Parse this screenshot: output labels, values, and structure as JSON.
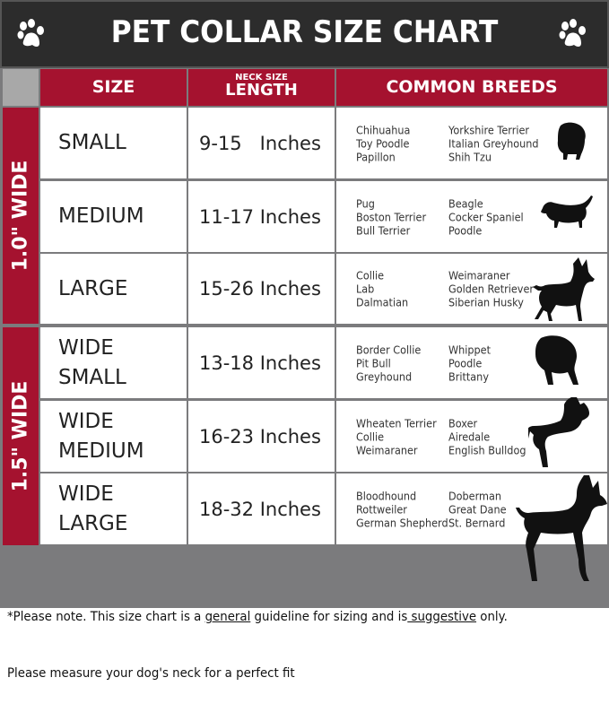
{
  "title": "PET COLLAR SIZE CHART",
  "header": {
    "size": "SIZE",
    "neck_small": "NECK SIZE",
    "length": "LENGTH",
    "breeds": "COMMON BREEDS"
  },
  "groups": [
    {
      "label": "1.0\" WIDE"
    },
    {
      "label": "1.5\" WIDE"
    }
  ],
  "rows": [
    {
      "size": [
        "SMALL"
      ],
      "length": "9-15   Inches",
      "breeds_a": [
        "Chihuahua",
        "Toy Poodle",
        "Papillon"
      ],
      "breeds_b": [
        "Yorkshire Terrier",
        "Italian Greyhound",
        "Shih Tzu"
      ],
      "icon": "small-dog-silhouette-icon"
    },
    {
      "size": [
        "MEDIUM"
      ],
      "length": "11-17 Inches",
      "breeds_a": [
        "Pug",
        "Boston Terrier",
        "Bull Terrier"
      ],
      "breeds_b": [
        "Beagle",
        "Cocker Spaniel",
        "Poodle"
      ],
      "icon": "dachshund-silhouette-icon"
    },
    {
      "size": [
        "LARGE"
      ],
      "length": "15-26 Inches",
      "breeds_a": [
        "Collie",
        "Lab",
        "Dalmatian"
      ],
      "breeds_b": [
        "Weimaraner",
        "Golden Retriever",
        "Siberian Husky"
      ],
      "icon": "shepherd-silhouette-icon"
    },
    {
      "size": [
        "WIDE",
        "SMALL"
      ],
      "length": "13-18 Inches",
      "breeds_a": [
        "Border Collie",
        "Pit Bull",
        "Greyhound"
      ],
      "breeds_b": [
        "Whippet",
        "Poodle",
        "Brittany"
      ],
      "icon": "bulldog-silhouette-icon"
    },
    {
      "size": [
        "WIDE",
        "MEDIUM"
      ],
      "length": "16-23 Inches",
      "breeds_a": [
        "Wheaten Terrier",
        "Collie",
        "Weimaraner"
      ],
      "breeds_b": [
        "Boxer",
        "Airedale",
        "English Bulldog"
      ],
      "icon": "pitbull-silhouette-icon"
    },
    {
      "size": [
        "WIDE",
        "LARGE"
      ],
      "length": "18-32 Inches",
      "breeds_a": [
        "Bloodhound",
        "Rottweiler",
        "German Shepherd"
      ],
      "breeds_b": [
        "Doberman",
        "Great Dane",
        "St. Bernard"
      ],
      "icon": "doberman-silhouette-icon"
    }
  ],
  "note": {
    "p1": "*Please note. This size chart is a ",
    "u1": "general",
    "p2": " guideline for sizing and is",
    "u2": " suggestive",
    "p3": " only.",
    "line2": "Please measure your dog's neck for a perfect fit"
  },
  "colors": {
    "header_bg": "#2c2c2c",
    "accent_red": "#a5122f",
    "footer_gray": "#7b7b7d"
  }
}
